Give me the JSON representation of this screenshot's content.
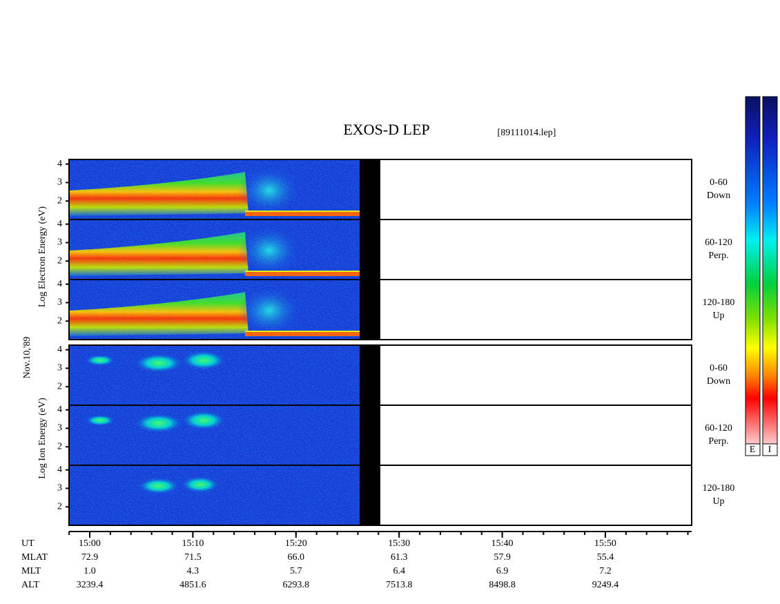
{
  "title": "EXOS-D LEP",
  "file": "[89111014.lep]",
  "date": "Nov.10,'89",
  "electron_ylabel": "Log  Electron  Energy (eV)",
  "ion_ylabel": "Log  Ion  Energy (eV)",
  "energy_range": [
    1,
    4.25
  ],
  "energy_ticks": [
    2,
    3,
    4
  ],
  "electron_panels": [
    {
      "angle": "0-60",
      "dir": "Down"
    },
    {
      "angle": "60-120",
      "dir": "Perp."
    },
    {
      "angle": "120-180",
      "dir": "Up"
    }
  ],
  "ion_panels": [
    {
      "angle": "0-60",
      "dir": "Down"
    },
    {
      "angle": "60-120",
      "dir": "Perp."
    },
    {
      "angle": "120-180",
      "dir": "Up"
    }
  ],
  "row_labels": [
    "UT",
    "MLAT",
    "MLT",
    "ALT"
  ],
  "columns": [
    [
      "15:00",
      "72.9",
      "1.0",
      "3239.4"
    ],
    [
      "15:10",
      "71.5",
      "4.3",
      "4851.6"
    ],
    [
      "15:20",
      "66.0",
      "5.7",
      "6293.8"
    ],
    [
      "15:30",
      "61.3",
      "6.4",
      "7513.8"
    ],
    [
      "15:40",
      "57.9",
      "6.9",
      "8498.8"
    ],
    [
      "15:50",
      "55.4",
      "7.2",
      "9249.4"
    ]
  ],
  "colorbar_labels": [
    "E",
    "I"
  ]
}
